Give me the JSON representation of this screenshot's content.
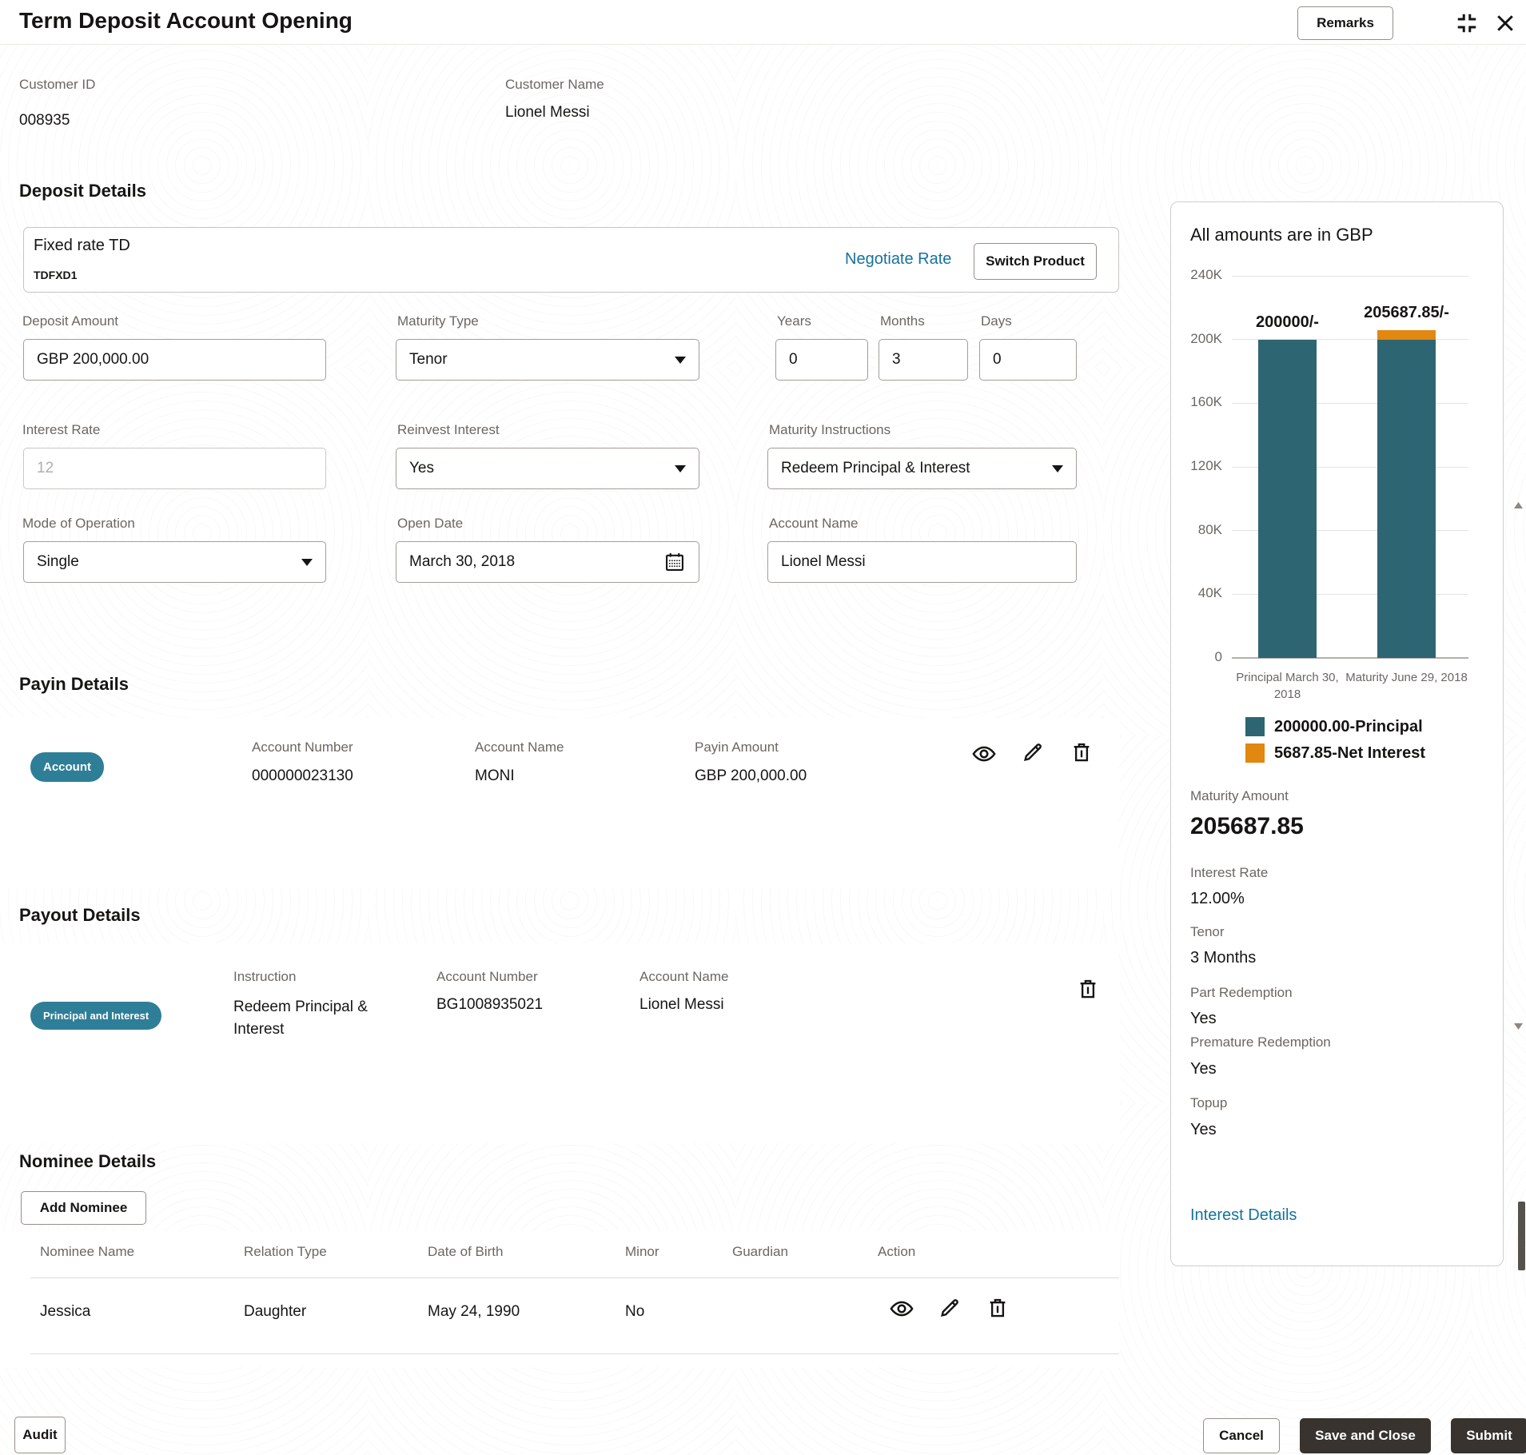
{
  "header": {
    "title": "Term Deposit Account Opening",
    "remarks_label": "Remarks"
  },
  "customer": {
    "id_label": "Customer ID",
    "id": "008935",
    "name_label": "Customer Name",
    "name": "Lionel Messi"
  },
  "deposit_details": {
    "section_title": "Deposit Details",
    "product": {
      "name": "Fixed rate TD",
      "code": "TDFXD1",
      "negotiate_label": "Negotiate Rate",
      "switch_label": "Switch Product"
    },
    "fields": {
      "deposit_amount": {
        "label": "Deposit Amount",
        "value": "GBP 200,000.00"
      },
      "maturity_type": {
        "label": "Maturity Type",
        "value": "Tenor"
      },
      "years": {
        "label": "Years",
        "value": "0"
      },
      "months": {
        "label": "Months",
        "value": "3"
      },
      "days": {
        "label": "Days",
        "value": "0"
      },
      "interest_rate": {
        "label": "Interest Rate",
        "value": "12"
      },
      "reinvest_interest": {
        "label": "Reinvest Interest",
        "value": "Yes"
      },
      "maturity_instructions": {
        "label": "Maturity Instructions",
        "value": "Redeem Principal & Interest"
      },
      "mode_of_operation": {
        "label": "Mode of Operation",
        "value": "Single"
      },
      "open_date": {
        "label": "Open Date",
        "value": "March 30, 2018"
      },
      "account_name": {
        "label": "Account Name",
        "value": "Lionel Messi"
      }
    }
  },
  "payin_details": {
    "section_title": "Payin Details",
    "row": {
      "badge": "Account",
      "account_number_label": "Account Number",
      "account_number": "000000023130",
      "account_name_label": "Account Name",
      "account_name": "MONI",
      "payin_amount_label": "Payin Amount",
      "payin_amount": "GBP 200,000.00"
    }
  },
  "payout_details": {
    "section_title": "Payout Details",
    "row": {
      "badge": "Principal and Interest",
      "instruction_label": "Instruction",
      "instruction": "Redeem Principal & Interest",
      "account_number_label": "Account Number",
      "account_number": "BG1008935021",
      "account_name_label": "Account Name",
      "account_name": "Lionel Messi"
    }
  },
  "nominee_details": {
    "section_title": "Nominee Details",
    "add_button": "Add Nominee",
    "columns": [
      "Nominee Name",
      "Relation Type",
      "Date of Birth",
      "Minor",
      "Guardian",
      "Action"
    ],
    "rows": [
      {
        "name": "Jessica",
        "relation": "Daughter",
        "dob": "May 24, 1990",
        "minor": "No",
        "guardian": ""
      }
    ]
  },
  "summary_panel": {
    "title": "All amounts are in GBP",
    "maturity_amount_label": "Maturity Amount",
    "maturity_amount": "205687.85",
    "interest_rate_label": "Interest Rate",
    "interest_rate": "12.00%",
    "tenor_label": "Tenor",
    "tenor": "3 Months",
    "part_redemption_label": "Part Redemption",
    "part_redemption": "Yes",
    "premature_redemption_label": "Premature Redemption",
    "premature_redemption": "Yes",
    "topup_label": "Topup",
    "topup": "Yes",
    "interest_details_label": "Interest Details"
  },
  "chart_data": {
    "type": "bar",
    "stacked": true,
    "title": "All amounts are in GBP",
    "categories": [
      "Principal March 30, 2018",
      "Maturity June 29, 2018"
    ],
    "series": [
      {
        "name": "200000.00-Principal",
        "color": "#2e6573",
        "values": [
          200000,
          200000
        ]
      },
      {
        "name": "5687.85-Net Interest",
        "color": "#e2870f",
        "values": [
          0,
          5687.85
        ]
      }
    ],
    "bar_labels": [
      "200000/-",
      "205687.85/-"
    ],
    "yticks": [
      "240K",
      "200K",
      "160K",
      "120K",
      "80K",
      "40K",
      "0"
    ],
    "ylim": [
      0,
      240000
    ],
    "grid": true,
    "legend_position": "bottom"
  },
  "footer": {
    "audit": "Audit",
    "cancel": "Cancel",
    "save_and_close": "Save and Close",
    "submit": "Submit"
  },
  "colors": {
    "accent_teal": "#2f7e98",
    "link_teal": "#15729c",
    "chart_principal": "#2e6573",
    "chart_interest": "#e2870f",
    "dark_button": "#38332e"
  }
}
